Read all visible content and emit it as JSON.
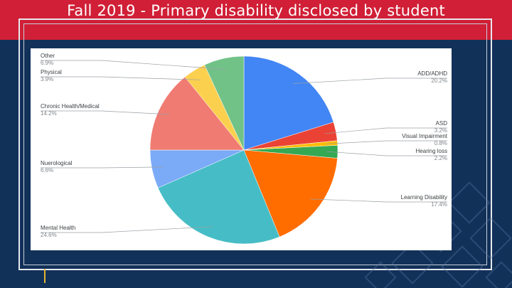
{
  "slide": {
    "title": "Fall 2019 - Primary disability disclosed by student"
  },
  "colors": {
    "top_band": "#d01f36",
    "background": "#123159",
    "accent": "#e2b331"
  },
  "chart_data": {
    "type": "pie",
    "title": "",
    "legend": "none",
    "label_style": "outside with leader lines",
    "start_angle_deg": 0,
    "direction": "clockwise",
    "slices": [
      {
        "label": "ADD/ADHD",
        "value": 20.2,
        "display": "20.2%",
        "color": "#4285f4"
      },
      {
        "label": "ASD",
        "value": 3.2,
        "display": "3.2%",
        "color": "#ea4335"
      },
      {
        "label": "Visual Impairment",
        "value": 0.8,
        "display": "0.8%",
        "color": "#fbbc04"
      },
      {
        "label": "Hearing loss",
        "value": 2.2,
        "display": "2.2%",
        "color": "#34a853"
      },
      {
        "label": "Learning Disability",
        "value": 17.4,
        "display": "17.4%",
        "color": "#ff6d01"
      },
      {
        "label": "Mental Health",
        "value": 24.6,
        "display": "24.6%",
        "color": "#46bdc6"
      },
      {
        "label": "Nuerological",
        "value": 6.6,
        "display": "6.6%",
        "color": "#7baaf7"
      },
      {
        "label": "Chronic Health/Medical",
        "value": 14.2,
        "display": "14.2%",
        "color": "#f07b72"
      },
      {
        "label": "Physical",
        "value": 3.9,
        "display": "3.9%",
        "color": "#fcd04f"
      },
      {
        "label": "Other",
        "value": 6.9,
        "display": "6.9%",
        "color": "#71c287"
      }
    ]
  }
}
